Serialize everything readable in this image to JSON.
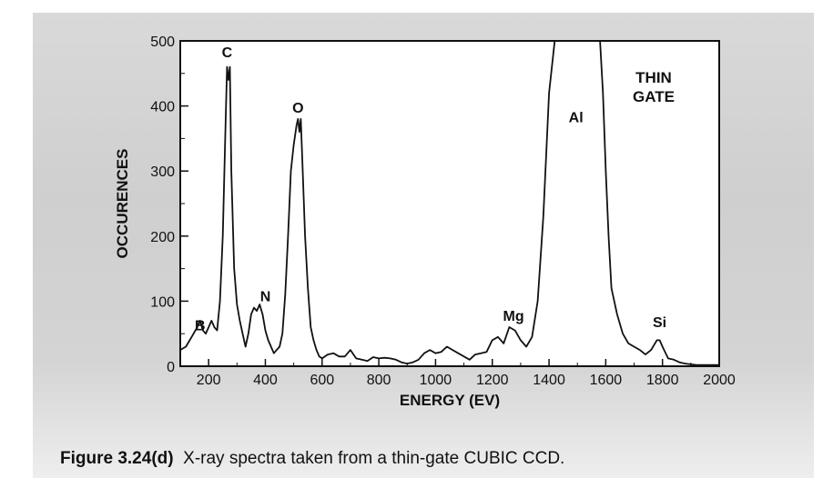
{
  "chart_data": {
    "type": "line",
    "xlabel": "ENERGY (EV)",
    "ylabel": "OCCURENCES",
    "xlim": [
      100,
      2000
    ],
    "ylim": [
      0,
      500
    ],
    "xticks": [
      "200",
      "400",
      "600",
      "800",
      "1000",
      "1200",
      "1400",
      "1600",
      "1800",
      "2000"
    ],
    "yticks": [
      "0",
      "100",
      "200",
      "300",
      "400",
      "500"
    ],
    "legend_text": [
      "THIN",
      "GATE"
    ],
    "series": [
      {
        "x": [
          100,
          120,
          140,
          160,
          170,
          180,
          190,
          200,
          210,
          220,
          230,
          240,
          250,
          260,
          265,
          270,
          275,
          280,
          290,
          300,
          310,
          320,
          330,
          340,
          350,
          360,
          370,
          380,
          390,
          400,
          410,
          420,
          430,
          440,
          450,
          460,
          470,
          480,
          490,
          500,
          510,
          515,
          520,
          525,
          530,
          540,
          550,
          560,
          570,
          580,
          590,
          600,
          620,
          640,
          660,
          680,
          700,
          720,
          740,
          760,
          780,
          800,
          820,
          840,
          860,
          880,
          900,
          920,
          940,
          960,
          980,
          1000,
          1020,
          1040,
          1060,
          1080,
          1100,
          1120,
          1140,
          1160,
          1180,
          1200,
          1220,
          1240,
          1260,
          1280,
          1300,
          1320,
          1340,
          1360,
          1380,
          1400,
          1420,
          1440,
          1450,
          1460,
          1480,
          1500,
          1520,
          1540,
          1560,
          1570,
          1580,
          1590,
          1600,
          1610,
          1620,
          1640,
          1660,
          1680,
          1700,
          1720,
          1740,
          1760,
          1780,
          1790,
          1800,
          1820,
          1840,
          1860,
          1880,
          1900,
          1920,
          1940,
          1960,
          1980,
          2000
        ],
        "y": [
          25,
          30,
          45,
          60,
          70,
          55,
          50,
          60,
          70,
          60,
          55,
          100,
          200,
          380,
          460,
          440,
          460,
          300,
          150,
          95,
          70,
          50,
          30,
          50,
          80,
          90,
          85,
          95,
          80,
          55,
          40,
          30,
          20,
          25,
          30,
          50,
          110,
          200,
          300,
          340,
          370,
          380,
          360,
          380,
          320,
          200,
          120,
          60,
          40,
          25,
          15,
          12,
          18,
          20,
          15,
          15,
          25,
          12,
          10,
          8,
          14,
          12,
          13,
          12,
          10,
          6,
          4,
          6,
          10,
          20,
          25,
          20,
          22,
          30,
          25,
          20,
          15,
          10,
          18,
          20,
          22,
          40,
          45,
          35,
          60,
          55,
          40,
          30,
          45,
          100,
          230,
          420,
          500,
          500,
          500,
          500,
          500,
          500,
          500,
          500,
          500,
          500,
          500,
          420,
          300,
          200,
          120,
          80,
          50,
          35,
          30,
          25,
          18,
          25,
          40,
          40,
          30,
          12,
          10,
          6,
          4,
          3,
          2,
          2,
          2,
          2,
          2
        ]
      }
    ],
    "annotations": [
      {
        "text": "B",
        "x": 170,
        "y": 55
      },
      {
        "text": "C",
        "x": 265,
        "y": 475
      },
      {
        "text": "N",
        "x": 400,
        "y": 100
      },
      {
        "text": "O",
        "x": 515,
        "y": 390
      },
      {
        "text": "Mg",
        "x": 1275,
        "y": 70
      },
      {
        "text": "Al",
        "x": 1495,
        "y": 375
      },
      {
        "text": "Si",
        "x": 1790,
        "y": 60
      }
    ]
  },
  "caption": {
    "label": "Figure 3.24(d)",
    "text": "X-ray spectra taken from a thin-gate CUBIC CCD."
  }
}
